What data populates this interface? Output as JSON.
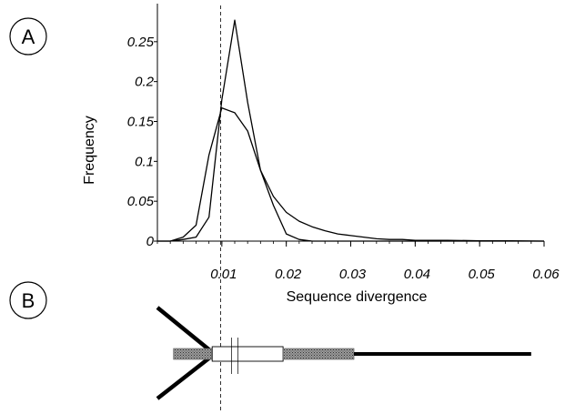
{
  "panels": {
    "a": "A",
    "b": "B"
  },
  "chart_data": {
    "type": "line",
    "title": "",
    "xlabel": "Sequence divergence",
    "ylabel": "Frequency",
    "xlim": [
      0,
      0.06
    ],
    "ylim": [
      0,
      0.3
    ],
    "xticks": [
      {
        "value": 0.01,
        "label": "0.01"
      },
      {
        "value": 0.02,
        "label": "0.02"
      },
      {
        "value": 0.03,
        "label": "0.03"
      },
      {
        "value": 0.04,
        "label": "0.04"
      },
      {
        "value": 0.05,
        "label": "0.05"
      },
      {
        "value": 0.06,
        "label": "0.06"
      }
    ],
    "yticks": [
      {
        "value": 0,
        "label": "0"
      },
      {
        "value": 0.05,
        "label": "0.05"
      },
      {
        "value": 0.1,
        "label": "0.1"
      },
      {
        "value": 0.15,
        "label": "0.15"
      },
      {
        "value": 0.2,
        "label": "0.2"
      },
      {
        "value": 0.25,
        "label": "0.25"
      }
    ],
    "reference_line_x": 0.0098,
    "grid": false,
    "legend": "none",
    "series": [
      {
        "x": [
          0,
          0.002,
          0.004,
          0.006,
          0.008,
          0.01,
          0.012,
          0.014,
          0.016,
          0.018,
          0.02,
          0.022,
          0.024,
          0.026,
          0.028,
          0.03,
          0.032,
          0.034,
          0.036,
          0.038,
          0.04,
          0.045,
          0.05,
          0.055,
          0.06
        ],
        "y": [
          0,
          0,
          0.002,
          0.005,
          0.03,
          0.177,
          0.277,
          0.174,
          0.089,
          0.045,
          0.009,
          0.002,
          0,
          0,
          0,
          0,
          0,
          0,
          0,
          0,
          0,
          0,
          0,
          0,
          0
        ]
      },
      {
        "x": [
          0,
          0.002,
          0.004,
          0.006,
          0.008,
          0.01,
          0.012,
          0.014,
          0.016,
          0.018,
          0.02,
          0.022,
          0.024,
          0.026,
          0.028,
          0.03,
          0.032,
          0.034,
          0.036,
          0.038,
          0.04,
          0.045,
          0.05,
          0.055,
          0.06
        ],
        "y": [
          0,
          0,
          0.005,
          0.02,
          0.108,
          0.167,
          0.161,
          0.138,
          0.089,
          0.056,
          0.036,
          0.025,
          0.018,
          0.013,
          0.009,
          0.007,
          0.005,
          0.003,
          0.002,
          0.002,
          0.001,
          0.001,
          0.0005,
          0.0003,
          0
        ]
      }
    ]
  },
  "diagram_b": {
    "segments": [
      {
        "style": "dotted",
        "from": 0.0025,
        "to": 0.0085
      },
      {
        "style": "hollow",
        "from": 0.0085,
        "to": 0.0195
      },
      {
        "style": "dotted",
        "from": 0.0195,
        "to": 0.0305
      },
      {
        "style": "solid",
        "from": 0.0305,
        "to": 0.058
      }
    ],
    "junction_x": 0.0085,
    "branch_left_x": 0.0,
    "split_marks_x": [
      0.0115,
      0.0125
    ]
  }
}
